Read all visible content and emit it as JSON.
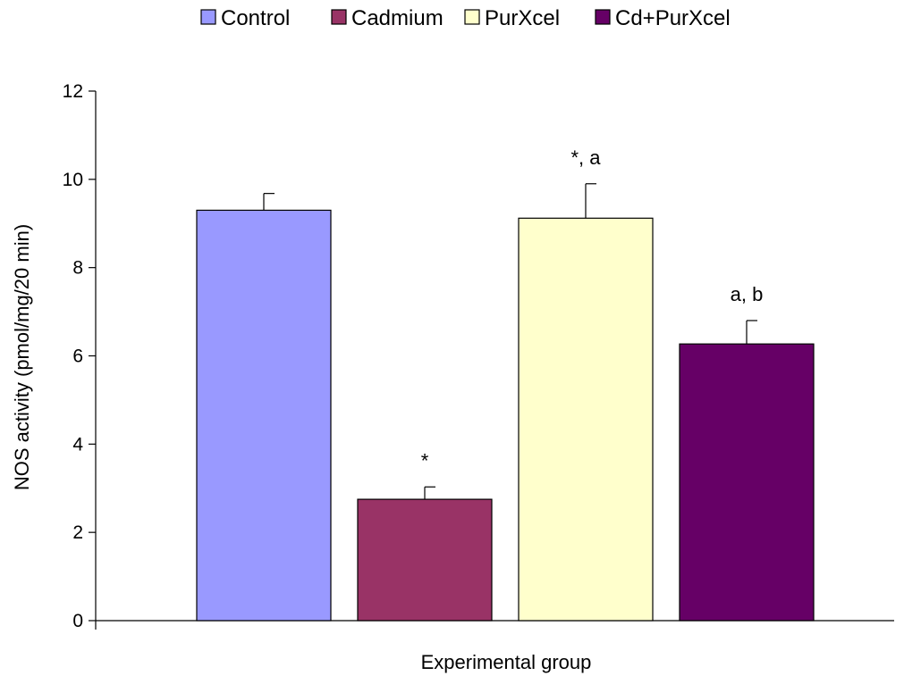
{
  "chart_data": {
    "type": "bar",
    "categories": [
      "Control",
      "Cadmium",
      "PurXcel",
      "Cd+PurXcel"
    ],
    "values": [
      9.3,
      2.75,
      9.12,
      6.27
    ],
    "errors": [
      0.38,
      0.28,
      0.78,
      0.53
    ],
    "annotations": [
      "",
      "*",
      "*, a",
      "a, b"
    ],
    "colors": [
      "#9999ff",
      "#993366",
      "#ffffcc",
      "#660066"
    ],
    "legend": [
      "Control",
      "Cadmium",
      "PurXcel",
      "Cd+PurXcel"
    ],
    "legend_position": "top",
    "xlabel": "Experimental group",
    "ylabel": "NOS activity (pmol/mg/20 min)",
    "ylim": [
      0,
      12
    ],
    "yticks": [
      "0",
      "2",
      "4",
      "6",
      "8",
      "10",
      "12"
    ],
    "grid": false
  }
}
